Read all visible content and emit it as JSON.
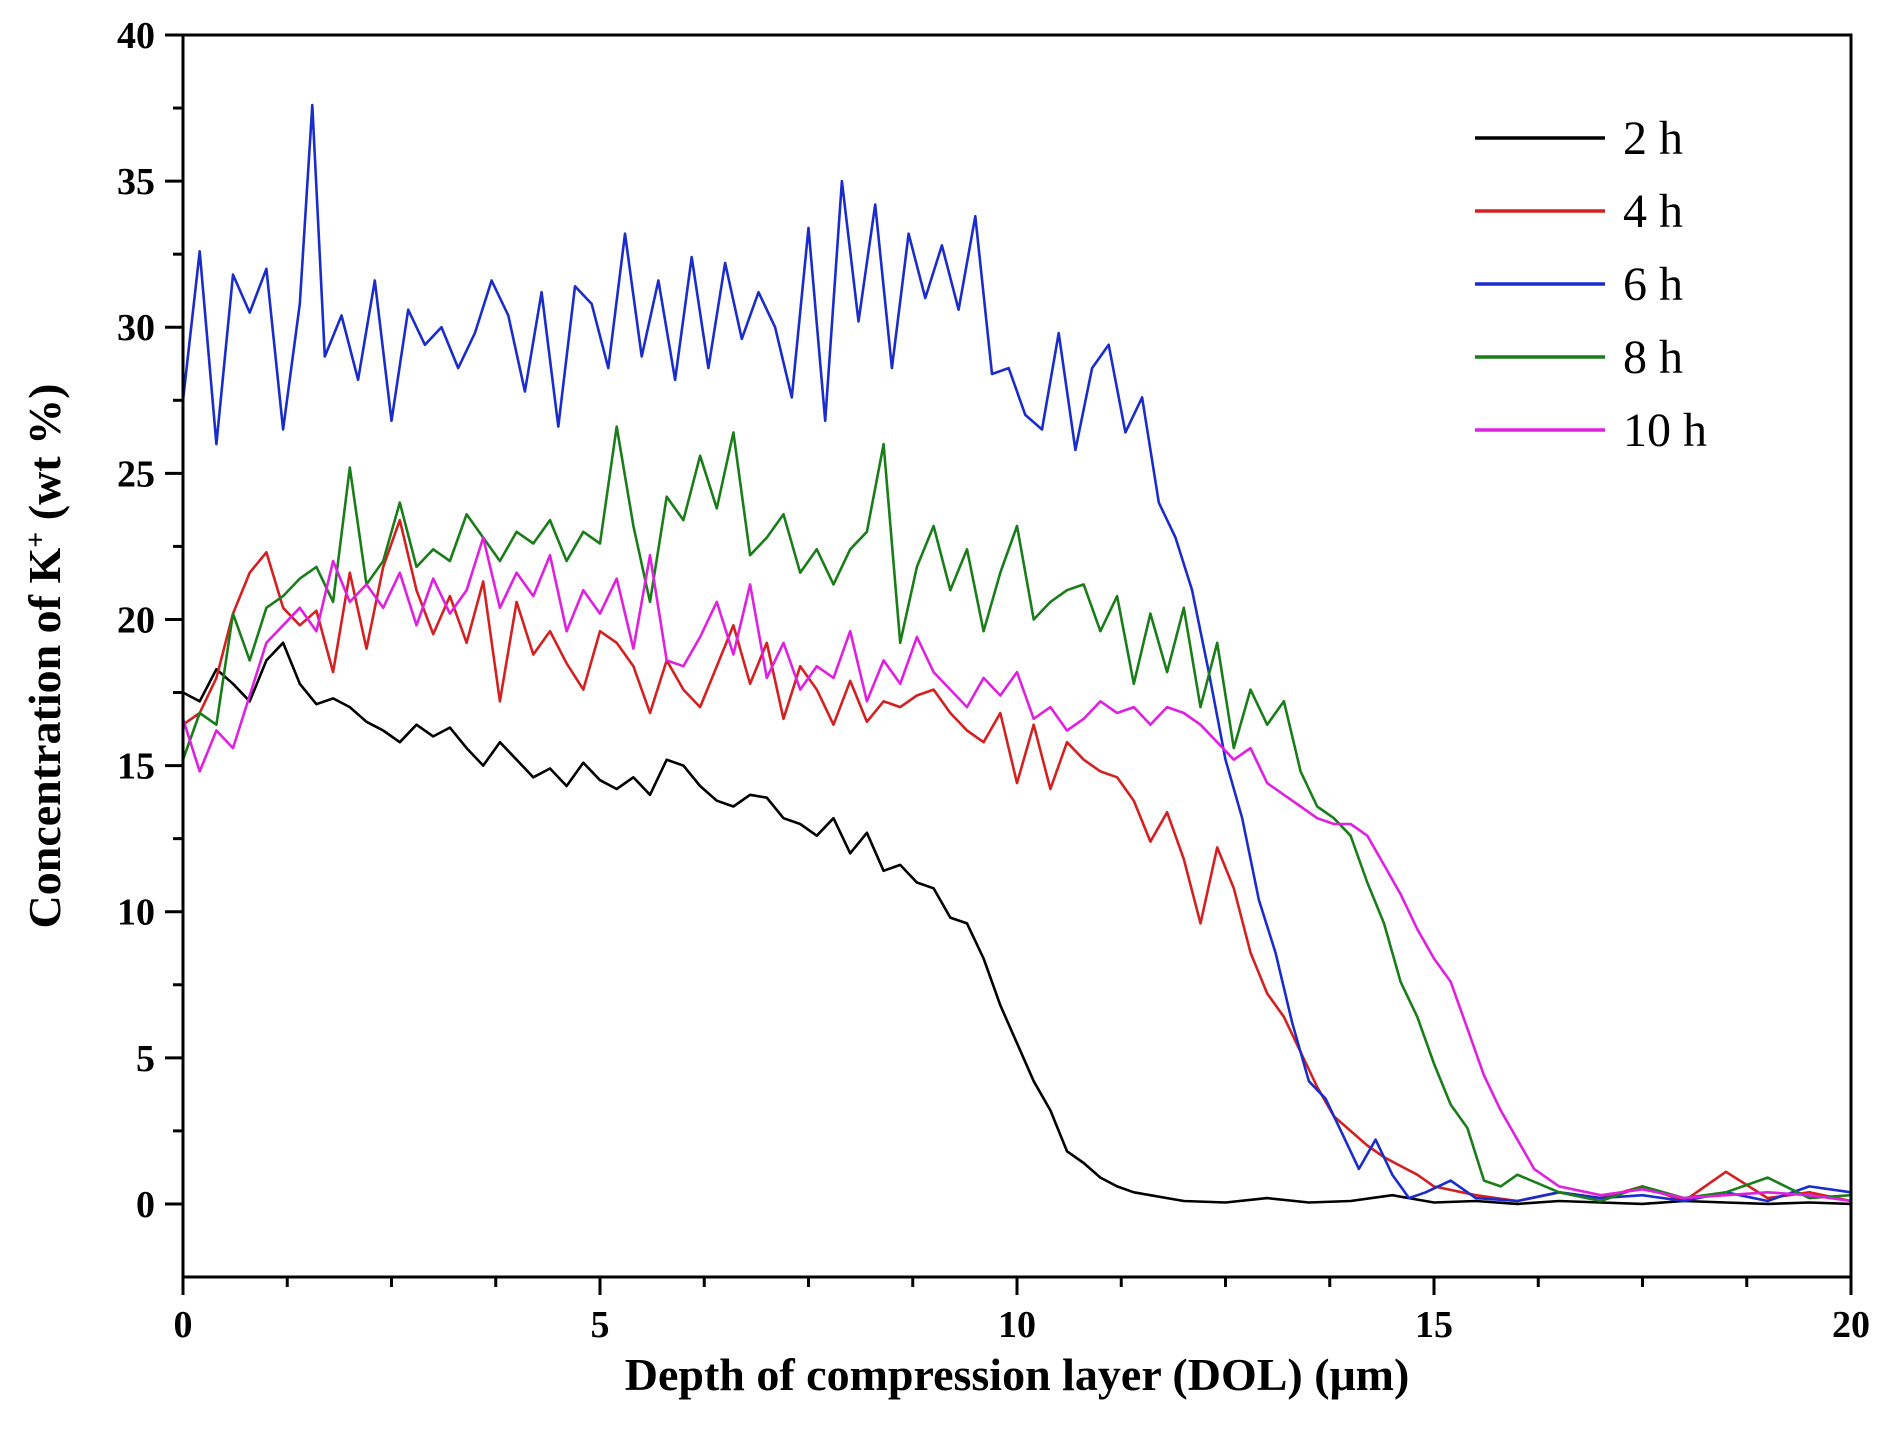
{
  "chart_data": {
    "type": "line",
    "title": "",
    "xlabel": "Depth of compression layer (DOL) (μm)",
    "ylabel_main": "Concentration of K",
    "ylabel_sup": "+",
    "ylabel_tail": " (wt %)",
    "xlim": [
      0,
      20
    ],
    "ylim": [
      -2.5,
      40
    ],
    "xticks": [
      0,
      5,
      10,
      15,
      20
    ],
    "yticks": [
      0,
      5,
      10,
      15,
      20,
      25,
      30,
      35,
      40
    ],
    "xtick_labels": [
      "0",
      "5",
      "10",
      "15",
      "20"
    ],
    "ytick_labels": [
      "0",
      "5",
      "10",
      "15",
      "20",
      "25",
      "30",
      "35",
      "40"
    ],
    "grid": false,
    "legend_position": "top-right",
    "series": [
      {
        "name": "2 h",
        "color": "#000000",
        "x": [
          0,
          0.2,
          0.4,
          0.6,
          0.8,
          1,
          1.2,
          1.4,
          1.6,
          1.8,
          2,
          2.2,
          2.4,
          2.6,
          2.8,
          3,
          3.2,
          3.4,
          3.6,
          3.8,
          4,
          4.2,
          4.4,
          4.6,
          4.8,
          5,
          5.2,
          5.4,
          5.6,
          5.8,
          6,
          6.2,
          6.4,
          6.6,
          6.8,
          7,
          7.2,
          7.4,
          7.6,
          7.8,
          8,
          8.2,
          8.4,
          8.6,
          8.8,
          9,
          9.2,
          9.4,
          9.6,
          9.8,
          10,
          10.2,
          10.4,
          10.6,
          10.8,
          11,
          11.2,
          11.4,
          11.6,
          11.8,
          12,
          12.5,
          13,
          13.5,
          14,
          14.5,
          15,
          15.5,
          16,
          16.5,
          17,
          17.5,
          18,
          18.5,
          19,
          19.5,
          20
        ],
        "y": [
          17.5,
          17.2,
          18.3,
          17.8,
          17.2,
          18.6,
          19.2,
          17.8,
          17.1,
          17.3,
          17.0,
          16.5,
          16.2,
          15.8,
          16.4,
          16.0,
          16.3,
          15.6,
          15.0,
          15.8,
          15.2,
          14.6,
          14.9,
          14.3,
          15.1,
          14.5,
          14.2,
          14.6,
          14.0,
          15.2,
          15.0,
          14.3,
          13.8,
          13.6,
          14.0,
          13.9,
          13.2,
          13.0,
          12.6,
          13.2,
          12.0,
          12.7,
          11.4,
          11.6,
          11.0,
          10.8,
          9.8,
          9.6,
          8.4,
          6.8,
          5.5,
          4.2,
          3.2,
          1.8,
          1.4,
          0.9,
          0.6,
          0.4,
          0.3,
          0.2,
          0.1,
          0.05,
          0.2,
          0.05,
          0.1,
          0.3,
          0.05,
          0.1,
          0.0,
          0.1,
          0.05,
          0.0,
          0.1,
          0.05,
          0.0,
          0.05,
          0.0
        ]
      },
      {
        "name": "4 h",
        "color": "#d42020",
        "x": [
          0,
          0.2,
          0.4,
          0.6,
          0.8,
          1,
          1.2,
          1.4,
          1.6,
          1.8,
          2,
          2.2,
          2.4,
          2.6,
          2.8,
          3,
          3.2,
          3.4,
          3.6,
          3.8,
          4,
          4.2,
          4.4,
          4.6,
          4.8,
          5,
          5.2,
          5.4,
          5.6,
          5.8,
          6,
          6.2,
          6.4,
          6.6,
          6.8,
          7,
          7.2,
          7.4,
          7.6,
          7.8,
          8,
          8.2,
          8.4,
          8.6,
          8.8,
          9,
          9.2,
          9.4,
          9.6,
          9.8,
          10,
          10.2,
          10.4,
          10.6,
          10.8,
          11,
          11.2,
          11.4,
          11.6,
          11.8,
          12,
          12.2,
          12.4,
          12.6,
          12.8,
          13,
          13.2,
          13.4,
          13.6,
          13.8,
          14,
          14.2,
          14.4,
          14.6,
          14.8,
          15,
          15.5,
          16,
          16.5,
          17,
          17.5,
          18,
          18.5,
          19,
          19.5,
          20
        ],
        "y": [
          16.4,
          16.8,
          18.0,
          20.2,
          21.6,
          22.3,
          20.4,
          19.8,
          20.3,
          18.2,
          21.6,
          19.0,
          21.8,
          23.4,
          21.0,
          19.5,
          20.8,
          19.2,
          21.3,
          17.2,
          20.6,
          18.8,
          19.6,
          18.5,
          17.6,
          19.6,
          19.2,
          18.4,
          16.8,
          18.6,
          17.6,
          17.0,
          18.4,
          19.8,
          17.8,
          19.2,
          16.6,
          18.4,
          17.6,
          16.4,
          17.9,
          16.5,
          17.2,
          17.0,
          17.4,
          17.6,
          16.8,
          16.2,
          15.8,
          16.8,
          14.4,
          16.4,
          14.2,
          15.8,
          15.2,
          14.8,
          14.6,
          13.8,
          12.4,
          13.4,
          11.8,
          9.6,
          12.2,
          10.8,
          8.6,
          7.2,
          6.4,
          5.2,
          4.0,
          3.0,
          2.5,
          2.0,
          1.6,
          1.3,
          1.0,
          0.6,
          0.3,
          0.1,
          0.4,
          0.2,
          0.6,
          0.1,
          1.1,
          0.2,
          0.4,
          0.1
        ]
      },
      {
        "name": "6 h",
        "color": "#1a2dcc",
        "x": [
          0,
          0.2,
          0.4,
          0.6,
          0.8,
          1,
          1.2,
          1.4,
          1.55,
          1.7,
          1.9,
          2.1,
          2.3,
          2.5,
          2.7,
          2.9,
          3.1,
          3.3,
          3.5,
          3.7,
          3.9,
          4.1,
          4.3,
          4.5,
          4.7,
          4.9,
          5.1,
          5.3,
          5.5,
          5.7,
          5.9,
          6.1,
          6.3,
          6.5,
          6.7,
          6.9,
          7.1,
          7.3,
          7.5,
          7.7,
          7.9,
          8.1,
          8.3,
          8.5,
          8.7,
          8.9,
          9.1,
          9.3,
          9.5,
          9.7,
          9.9,
          10.1,
          10.3,
          10.5,
          10.7,
          10.9,
          11.1,
          11.3,
          11.5,
          11.7,
          11.9,
          12.1,
          12.3,
          12.5,
          12.7,
          12.9,
          13.1,
          13.3,
          13.5,
          13.7,
          13.9,
          14.1,
          14.3,
          14.5,
          14.7,
          14.9,
          15.2,
          15.5,
          16,
          16.5,
          17,
          17.5,
          18,
          18.5,
          19,
          19.5,
          20
        ],
        "y": [
          27.5,
          32.6,
          26.0,
          31.8,
          30.5,
          32.0,
          26.5,
          30.8,
          37.6,
          29.0,
          30.4,
          28.2,
          31.6,
          26.8,
          30.6,
          29.4,
          30.0,
          28.6,
          29.8,
          31.6,
          30.4,
          27.8,
          31.2,
          26.6,
          31.4,
          30.8,
          28.6,
          33.2,
          29.0,
          31.6,
          28.2,
          32.4,
          28.6,
          32.2,
          29.6,
          31.2,
          30.0,
          27.6,
          33.4,
          26.8,
          35.0,
          30.2,
          34.2,
          28.6,
          33.2,
          31.0,
          32.8,
          30.6,
          33.8,
          28.4,
          28.6,
          27.0,
          26.5,
          29.8,
          25.8,
          28.6,
          29.4,
          26.4,
          27.6,
          24.0,
          22.8,
          21.0,
          18.2,
          15.2,
          13.2,
          10.4,
          8.6,
          6.2,
          4.2,
          3.6,
          2.4,
          1.2,
          2.2,
          1.0,
          0.2,
          0.4,
          0.8,
          0.2,
          0.1,
          0.4,
          0.2,
          0.3,
          0.1,
          0.4,
          0.1,
          0.6,
          0.4
        ]
      },
      {
        "name": "8 h",
        "color": "#1a7d1a",
        "x": [
          0,
          0.2,
          0.4,
          0.6,
          0.8,
          1,
          1.2,
          1.4,
          1.6,
          1.8,
          2,
          2.2,
          2.4,
          2.6,
          2.8,
          3,
          3.2,
          3.4,
          3.6,
          3.8,
          4,
          4.2,
          4.4,
          4.6,
          4.8,
          5,
          5.2,
          5.4,
          5.6,
          5.8,
          6,
          6.2,
          6.4,
          6.6,
          6.8,
          7,
          7.2,
          7.4,
          7.6,
          7.8,
          8,
          8.2,
          8.4,
          8.6,
          8.8,
          9,
          9.2,
          9.4,
          9.6,
          9.8,
          10,
          10.2,
          10.4,
          10.6,
          10.8,
          11,
          11.2,
          11.4,
          11.6,
          11.8,
          12,
          12.2,
          12.4,
          12.6,
          12.8,
          13,
          13.2,
          13.4,
          13.6,
          13.8,
          14,
          14.2,
          14.4,
          14.6,
          14.8,
          15,
          15.2,
          15.4,
          15.6,
          15.8,
          16,
          16.5,
          17,
          17.5,
          18,
          18.5,
          19,
          19.5,
          20
        ],
        "y": [
          15.2,
          16.8,
          16.4,
          20.2,
          18.6,
          20.4,
          20.8,
          21.4,
          21.8,
          20.6,
          25.2,
          21.2,
          22.0,
          24.0,
          21.8,
          22.4,
          22.0,
          23.6,
          22.8,
          22.0,
          23.0,
          22.6,
          23.4,
          22.0,
          23.0,
          22.6,
          26.6,
          23.2,
          20.6,
          24.2,
          23.4,
          25.6,
          23.8,
          26.4,
          22.2,
          22.8,
          23.6,
          21.6,
          22.4,
          21.2,
          22.4,
          23.0,
          26.0,
          19.2,
          21.8,
          23.2,
          21.0,
          22.4,
          19.6,
          21.6,
          23.2,
          20.0,
          20.6,
          21.0,
          21.2,
          19.6,
          20.8,
          17.8,
          20.2,
          18.2,
          20.4,
          17.0,
          19.2,
          15.6,
          17.6,
          16.4,
          17.2,
          14.8,
          13.6,
          13.2,
          12.6,
          11.0,
          9.6,
          7.6,
          6.4,
          4.8,
          3.4,
          2.6,
          0.8,
          0.6,
          1.0,
          0.4,
          0.1,
          0.6,
          0.2,
          0.4,
          0.9,
          0.2,
          0.3
        ]
      },
      {
        "name": "10 h",
        "color": "#e020e0",
        "x": [
          0,
          0.2,
          0.4,
          0.6,
          0.8,
          1,
          1.2,
          1.4,
          1.6,
          1.8,
          2,
          2.2,
          2.4,
          2.6,
          2.8,
          3,
          3.2,
          3.4,
          3.6,
          3.8,
          4,
          4.2,
          4.4,
          4.6,
          4.8,
          5,
          5.2,
          5.4,
          5.6,
          5.8,
          6,
          6.2,
          6.4,
          6.6,
          6.8,
          7,
          7.2,
          7.4,
          7.6,
          7.8,
          8,
          8.2,
          8.4,
          8.6,
          8.8,
          9,
          9.2,
          9.4,
          9.6,
          9.8,
          10,
          10.2,
          10.4,
          10.6,
          10.8,
          11,
          11.2,
          11.4,
          11.6,
          11.8,
          12,
          12.2,
          12.4,
          12.6,
          12.8,
          13,
          13.2,
          13.4,
          13.6,
          13.8,
          14,
          14.2,
          14.4,
          14.6,
          14.8,
          15,
          15.2,
          15.4,
          15.6,
          15.8,
          16,
          16.2,
          16.5,
          17,
          17.5,
          18,
          18.5,
          19,
          19.5,
          20
        ],
        "y": [
          16.6,
          14.8,
          16.2,
          15.6,
          17.4,
          19.2,
          19.8,
          20.4,
          19.6,
          22.0,
          20.6,
          21.2,
          20.4,
          21.6,
          19.8,
          21.4,
          20.2,
          21.0,
          22.8,
          20.4,
          21.6,
          20.8,
          22.2,
          19.6,
          21.0,
          20.2,
          21.4,
          19.0,
          22.2,
          18.6,
          18.4,
          19.4,
          20.6,
          18.8,
          21.2,
          18.0,
          19.2,
          17.6,
          18.4,
          18.0,
          19.6,
          17.2,
          18.6,
          17.8,
          19.4,
          18.2,
          17.6,
          17.0,
          18.0,
          17.4,
          18.2,
          16.6,
          17.0,
          16.2,
          16.6,
          17.2,
          16.8,
          17.0,
          16.4,
          17.0,
          16.8,
          16.4,
          15.8,
          15.2,
          15.6,
          14.4,
          14.0,
          13.6,
          13.2,
          13.0,
          13.0,
          12.6,
          11.6,
          10.6,
          9.4,
          8.4,
          7.6,
          6.0,
          4.4,
          3.2,
          2.2,
          1.2,
          0.6,
          0.3,
          0.5,
          0.2,
          0.3,
          0.4,
          0.3,
          0.1
        ]
      }
    ]
  }
}
